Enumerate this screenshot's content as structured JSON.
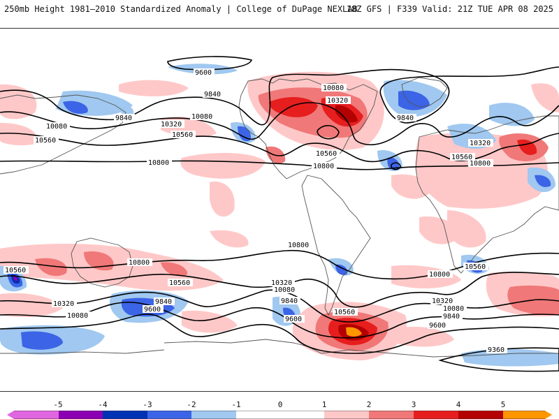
{
  "header": {
    "left_title": "250mb Height 1981–2010 Standardized Anomaly | College of DuPage NEXLAB",
    "right_title": "18Z GFS | F339 Valid: 21Z TUE APR 08 2025"
  },
  "colors": {
    "neg5": "#e066e0",
    "neg4": "#8c00b4",
    "neg3": "#0032b4",
    "neg2": "#3c64e6",
    "neg1": "#a0c8f0",
    "pos1": "#ffc8c8",
    "pos2": "#f07878",
    "pos3": "#e61e1e",
    "pos4": "#b40000",
    "pos5": "#ff9600",
    "pos6": "#ffd700"
  },
  "colorbar": {
    "ticks": [
      "-5",
      "-4",
      "-3",
      "-2",
      "-1",
      "0",
      "1",
      "2",
      "3",
      "4",
      "5"
    ]
  },
  "contour_labels": {
    "l1": "9600",
    "l2": "9840",
    "l3": "10080",
    "l4": "9840",
    "l5": "10080",
    "l6": "10320",
    "l7": "10560",
    "l8": "10560",
    "l9": "10800",
    "l10": "10080",
    "l11": "10320",
    "l12": "10560",
    "l13": "10800",
    "l14": "9840",
    "l15": "10320",
    "l16": "10560",
    "l17": "10800",
    "l18": "10800",
    "l19": "10560",
    "l20": "10800",
    "l21": "10560",
    "l22": "10320",
    "l23": "10080",
    "l24": "9840",
    "l25": "9600",
    "l26": "10320",
    "l27": "10080",
    "l28": "9840",
    "l29": "9600",
    "l30": "10560",
    "l31": "10800",
    "l32": "10560",
    "l33": "10320",
    "l34": "10080",
    "l35": "9840",
    "l36": "9600",
    "l37": "9360"
  }
}
